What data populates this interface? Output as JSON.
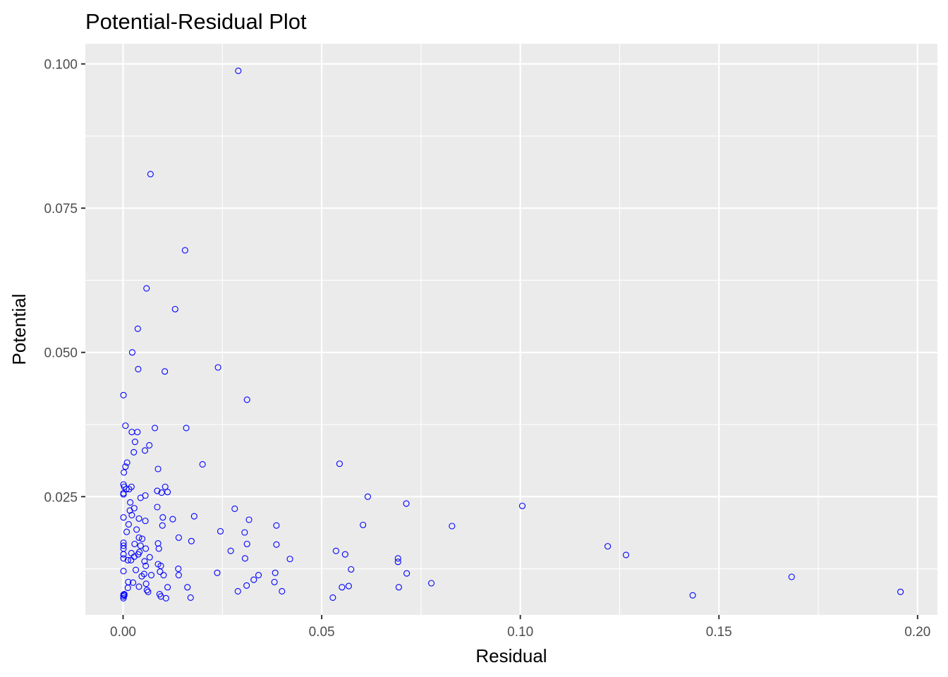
{
  "chart_data": {
    "type": "scatter",
    "title": "Potential-Residual Plot",
    "xlabel": "Residual",
    "ylabel": "Potential",
    "xlim": [
      -0.0095,
      0.205
    ],
    "ylim": [
      0.0045,
      0.1035
    ],
    "x_ticks": [
      0.0,
      0.05,
      0.1,
      0.15,
      0.2
    ],
    "x_tick_labels": [
      "0.00",
      "0.05",
      "0.10",
      "0.15",
      "0.20"
    ],
    "y_ticks": [
      0.025,
      0.05,
      0.075,
      0.1
    ],
    "y_tick_labels": [
      "0.025",
      "0.050",
      "0.075",
      "0.100"
    ],
    "x_minor_ticks": [
      0.025,
      0.075,
      0.125,
      0.175
    ],
    "y_minor_ticks": [
      0.0125,
      0.0375,
      0.0625,
      0.0875
    ],
    "grid": true,
    "panel_background": "#ebebeb",
    "point_color": "#0000ff",
    "point_shape": "open-circle",
    "series": [
      {
        "points": [
          [
            0.029,
            0.0988
          ],
          [
            0.0069,
            0.0809
          ],
          [
            0.0156,
            0.0677
          ],
          [
            0.0059,
            0.0611
          ],
          [
            0.0131,
            0.0575
          ],
          [
            0.0037,
            0.0541
          ],
          [
            0.0023,
            0.05
          ],
          [
            0.0239,
            0.0474
          ],
          [
            0.0038,
            0.0471
          ],
          [
            0.0105,
            0.0467
          ],
          [
            0.0312,
            0.0418
          ],
          [
            0.0001,
            0.0426
          ],
          [
            0.0006,
            0.0373
          ],
          [
            0.008,
            0.0369
          ],
          [
            0.0159,
            0.0369
          ],
          [
            0.0022,
            0.0362
          ],
          [
            0.0036,
            0.0362
          ],
          [
            0.003,
            0.0345
          ],
          [
            0.0066,
            0.0339
          ],
          [
            0.0055,
            0.033
          ],
          [
            0.0027,
            0.0327
          ],
          [
            0.001,
            0.0309
          ],
          [
            0.02,
            0.0306
          ],
          [
            0.0545,
            0.0307
          ],
          [
            0.0006,
            0.0302
          ],
          [
            0.0088,
            0.0298
          ],
          [
            0.0002,
            0.0292
          ],
          [
            0.0001,
            0.0271
          ],
          [
            0.0003,
            0.0267
          ],
          [
            0.0021,
            0.0267
          ],
          [
            0.0106,
            0.0267
          ],
          [
            0.0008,
            0.0263
          ],
          [
            0.0015,
            0.0263
          ],
          [
            0.0086,
            0.026
          ],
          [
            0.0112,
            0.0258
          ],
          [
            0.0097,
            0.0257
          ],
          [
            0.0001,
            0.0256
          ],
          [
            0.0001,
            0.0254
          ],
          [
            0.0056,
            0.0252
          ],
          [
            0.0616,
            0.025
          ],
          [
            0.0044,
            0.0248
          ],
          [
            0.0018,
            0.024
          ],
          [
            0.0713,
            0.0238
          ],
          [
            0.1005,
            0.0234
          ],
          [
            0.0028,
            0.023
          ],
          [
            0.0086,
            0.0232
          ],
          [
            0.0281,
            0.0229
          ],
          [
            0.0017,
            0.0226
          ],
          [
            0.0022,
            0.0218
          ],
          [
            0.0179,
            0.0216
          ],
          [
            0.0001,
            0.0214
          ],
          [
            0.01,
            0.0214
          ],
          [
            0.004,
            0.0212
          ],
          [
            0.0125,
            0.0211
          ],
          [
            0.0317,
            0.021
          ],
          [
            0.0056,
            0.0208
          ],
          [
            0.0014,
            0.0202
          ],
          [
            0.0386,
            0.02
          ],
          [
            0.0604,
            0.0201
          ],
          [
            0.0828,
            0.0199
          ],
          [
            0.0099,
            0.02
          ],
          [
            0.0034,
            0.0193
          ],
          [
            0.0009,
            0.0189
          ],
          [
            0.0245,
            0.019
          ],
          [
            0.0306,
            0.0188
          ],
          [
            0.004,
            0.0179
          ],
          [
            0.0048,
            0.0177
          ],
          [
            0.014,
            0.0179
          ],
          [
            0.0172,
            0.0173
          ],
          [
            0.0001,
            0.017
          ],
          [
            0.0029,
            0.0168
          ],
          [
            0.0088,
            0.0169
          ],
          [
            0.0312,
            0.0168
          ],
          [
            0.0386,
            0.0167
          ],
          [
            0.0001,
            0.0165
          ],
          [
            0.0044,
            0.0165
          ],
          [
            0.122,
            0.0164
          ],
          [
            0.0001,
            0.016
          ],
          [
            0.0057,
            0.016
          ],
          [
            0.009,
            0.016
          ],
          [
            0.0271,
            0.0156
          ],
          [
            0.0536,
            0.0156
          ],
          [
            0.0041,
            0.0154
          ],
          [
            0.0021,
            0.0152
          ],
          [
            0.0559,
            0.015
          ],
          [
            0.1266,
            0.0149
          ],
          [
            0.0001,
            0.015
          ],
          [
            0.0038,
            0.015
          ],
          [
            0.0028,
            0.0146
          ],
          [
            0.0067,
            0.0145
          ],
          [
            0.0307,
            0.0143
          ],
          [
            0.0001,
            0.0143
          ],
          [
            0.042,
            0.0142
          ],
          [
            0.0692,
            0.0143
          ],
          [
            0.0012,
            0.014
          ],
          [
            0.002,
            0.014
          ],
          [
            0.0054,
            0.0138
          ],
          [
            0.0692,
            0.0137
          ],
          [
            0.0088,
            0.0133
          ],
          [
            0.0095,
            0.013
          ],
          [
            0.0057,
            0.013
          ],
          [
            0.0139,
            0.0125
          ],
          [
            0.0032,
            0.0123
          ],
          [
            0.0574,
            0.0124
          ],
          [
            0.0001,
            0.0121
          ],
          [
            0.0093,
            0.012
          ],
          [
            0.0237,
            0.0118
          ],
          [
            0.0383,
            0.0118
          ],
          [
            0.0714,
            0.0117
          ],
          [
            0.0053,
            0.0116
          ],
          [
            0.014,
            0.0114
          ],
          [
            0.0071,
            0.0114
          ],
          [
            0.0102,
            0.0114
          ],
          [
            0.0341,
            0.0114
          ],
          [
            0.0047,
            0.0112
          ],
          [
            0.1683,
            0.0111
          ],
          [
            0.0329,
            0.0106
          ],
          [
            0.0013,
            0.0102
          ],
          [
            0.0025,
            0.0101
          ],
          [
            0.0058,
            0.0099
          ],
          [
            0.0381,
            0.0102
          ],
          [
            0.0776,
            0.01
          ],
          [
            0.004,
            0.0094
          ],
          [
            0.0112,
            0.0093
          ],
          [
            0.0162,
            0.0093
          ],
          [
            0.0311,
            0.0096
          ],
          [
            0.0551,
            0.0093
          ],
          [
            0.0568,
            0.0095
          ],
          [
            0.0694,
            0.0093
          ],
          [
            0.0012,
            0.0092
          ],
          [
            0.006,
            0.0088
          ],
          [
            0.0063,
            0.0085
          ],
          [
            0.0289,
            0.0086
          ],
          [
            0.04,
            0.0086
          ],
          [
            0.1957,
            0.0085
          ],
          [
            0.0092,
            0.0081
          ],
          [
            0.0001,
            0.008
          ],
          [
            0.0003,
            0.0081
          ],
          [
            0.0001,
            0.0077
          ],
          [
            0.0003,
            0.0079
          ],
          [
            0.0001,
            0.0074
          ],
          [
            0.0095,
            0.0077
          ],
          [
            0.0108,
            0.0074
          ],
          [
            0.017,
            0.0075
          ],
          [
            0.0528,
            0.0075
          ],
          [
            0.1434,
            0.0079
          ]
        ]
      }
    ]
  }
}
